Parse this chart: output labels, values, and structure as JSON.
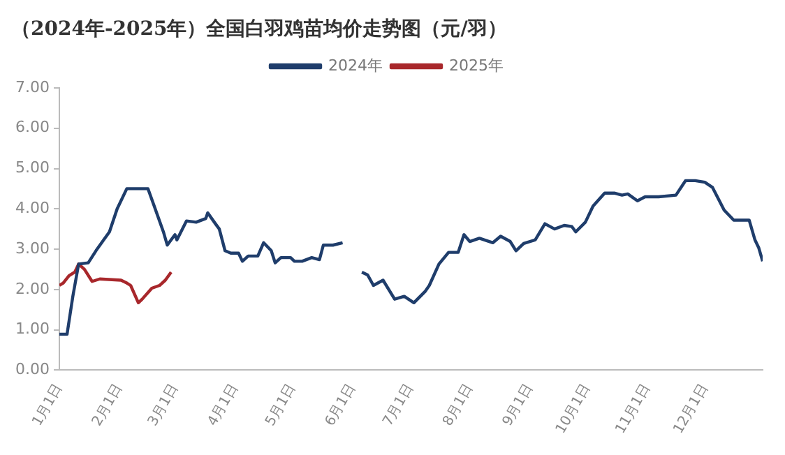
{
  "chart_data": {
    "type": "line",
    "title": "（2024年-2025年）全国白羽鸡苗均价走势图（元/羽）",
    "x": [
      "--01-01",
      "--01-05",
      "--01-08",
      "--01-11",
      "--01-16",
      "--01-20",
      "--01-24",
      "--01-27",
      "--01-31",
      "--02-05",
      "--02-16",
      "--02-19",
      "--02-24",
      "--02-26",
      "--03-01",
      "--03-02",
      "--03-07",
      "--03-12",
      "--03-17",
      "--03-18",
      "--03-22",
      "--03-24",
      "--03-27",
      "--03-30",
      "--04-03",
      "--04-05",
      "--04-08",
      "--04-13",
      "--04-16",
      "--04-20",
      "--04-22",
      "--04-25",
      "--04-30",
      "--05-02",
      "--05-06",
      "--05-11",
      "--05-15",
      "--05-17",
      "--05-22",
      "--05-27",
      "--06-01",
      "--06-06",
      "--06-09",
      "--06-12",
      "--06-17",
      "--06-23",
      "--06-28",
      "--07-03",
      "--07-09",
      "--07-11",
      "--07-16",
      "--07-21",
      "--07-26",
      "--07-29",
      "--08-01",
      "--08-06",
      "--08-13",
      "--08-17",
      "--08-22",
      "--08-25",
      "--08-29",
      "--09-04",
      "--09-09",
      "--09-14",
      "--09-19",
      "--09-23",
      "--09-25",
      "--09-30",
      "--10-04",
      "--10-10",
      "--10-15",
      "--10-19",
      "--10-22",
      "--10-27",
      "--10-31",
      "--11-07",
      "--11-16",
      "--11-21",
      "--11-26",
      "--12-01",
      "--12-05",
      "--12-11",
      "--12-16",
      "--12-24",
      "--12-27",
      "--12-29",
      "--12-31"
    ],
    "series": [
      {
        "name": "2024年",
        "color": "#1f3d6b",
        "values": [
          0.89,
          0.89,
          1.83,
          2.63,
          2.66,
          2.96,
          3.23,
          3.43,
          4.0,
          4.5,
          4.5,
          4.1,
          3.43,
          3.1,
          3.36,
          3.23,
          3.7,
          3.67,
          3.76,
          3.9,
          3.63,
          3.5,
          2.96,
          2.9,
          2.9,
          2.7,
          2.83,
          2.83,
          3.16,
          2.96,
          2.66,
          2.79,
          2.79,
          2.7,
          2.7,
          2.79,
          2.74,
          3.1,
          3.1,
          3.16,
          null,
          2.43,
          2.36,
          2.1,
          2.23,
          1.76,
          1.83,
          1.67,
          1.96,
          2.1,
          2.63,
          2.92,
          2.92,
          3.36,
          3.19,
          3.27,
          3.16,
          3.32,
          3.19,
          2.96,
          3.14,
          3.23,
          3.63,
          3.5,
          3.59,
          3.56,
          3.43,
          3.67,
          4.07,
          4.39,
          4.39,
          4.34,
          4.37,
          4.2,
          4.3,
          4.3,
          4.34,
          4.7,
          4.7,
          4.66,
          4.53,
          3.97,
          3.72,
          3.72,
          3.23,
          3.03,
          2.7
        ]
      },
      {
        "name": "2025年",
        "color": "#a8272b",
        "x": [
          "--01-01",
          "--01-03",
          "--01-06",
          "--01-09",
          "--01-11",
          "--01-14",
          "--01-18",
          "--01-22",
          "--02-02",
          "--02-05",
          "--02-07",
          "--02-11",
          "--02-13",
          "--02-18",
          "--02-22",
          "--02-25",
          "--02-28"
        ],
        "values": [
          2.1,
          2.16,
          2.34,
          2.43,
          2.63,
          2.5,
          2.2,
          2.26,
          2.23,
          2.16,
          2.1,
          1.67,
          1.76,
          2.03,
          2.1,
          2.23,
          2.43
        ]
      }
    ],
    "xlim": [
      "--01-01",
      "--12-31"
    ],
    "xticks": [
      {
        "value": "--01-01",
        "label": "1月1日"
      },
      {
        "value": "--02-01",
        "label": "2月1日"
      },
      {
        "value": "--03-01",
        "label": "3月1日"
      },
      {
        "value": "--04-01",
        "label": "4月1日"
      },
      {
        "value": "--05-01",
        "label": "5月1日"
      },
      {
        "value": "--06-01",
        "label": "6月1日"
      },
      {
        "value": "--07-01",
        "label": "7月1日"
      },
      {
        "value": "--08-01",
        "label": "8月1日"
      },
      {
        "value": "--09-01",
        "label": "9月1日"
      },
      {
        "value": "--10-01",
        "label": "10月1日"
      },
      {
        "value": "--11-01",
        "label": "11月1日"
      },
      {
        "value": "--12-01",
        "label": "12月1日"
      }
    ],
    "ylim": [
      0,
      7
    ],
    "yticks": [
      {
        "value": 0,
        "label": "0.00"
      },
      {
        "value": 1,
        "label": "1.00"
      },
      {
        "value": 2,
        "label": "2.00"
      },
      {
        "value": 3,
        "label": "3.00"
      },
      {
        "value": 4,
        "label": "4.00"
      },
      {
        "value": 5,
        "label": "5.00"
      },
      {
        "value": 6,
        "label": "6.00"
      },
      {
        "value": 7,
        "label": "7.00"
      }
    ],
    "grid": false,
    "legend": "top",
    "marker": "none",
    "line_style": "solid"
  }
}
